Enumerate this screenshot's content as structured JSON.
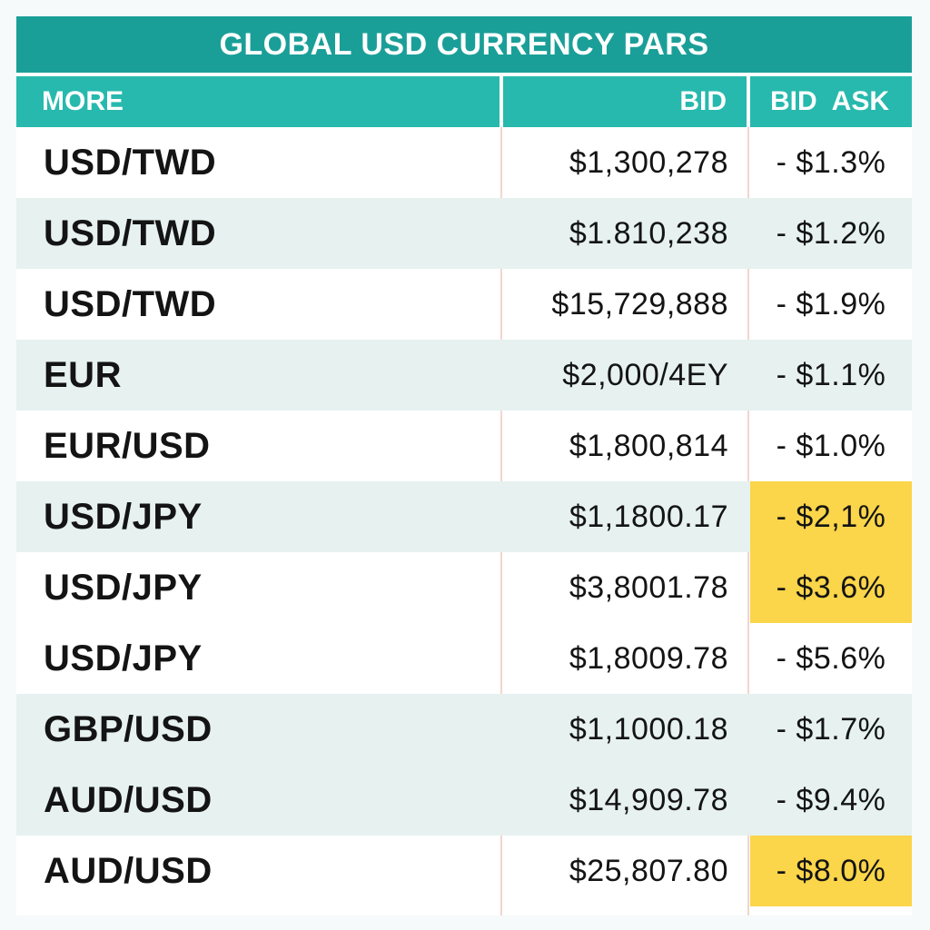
{
  "title": "GLOBAL USD CURRENCY PARS",
  "headers": {
    "col1": "MORE",
    "col2": "BID",
    "col3a": "BID",
    "col3b": "ASK"
  },
  "colors": {
    "title_bg": "#1a9f98",
    "header_bg": "#27b9ad",
    "row_shade": "#e6f1f0",
    "highlight": "#fbd54a"
  },
  "rows": [
    {
      "pair": "USD/TWD",
      "bid": "$1,300,278",
      "ask": "- $1.3%",
      "highlight": false,
      "shaded": false
    },
    {
      "pair": "USD/TWD",
      "bid": "$1.810,238",
      "ask": "- $1.2%",
      "highlight": false,
      "shaded": true
    },
    {
      "pair": "USD/TWD",
      "bid": "$15,729,888",
      "ask": "- $1.9%",
      "highlight": false,
      "shaded": false
    },
    {
      "pair": "EUR",
      "bid": "$2,000/4EY",
      "ask": "- $1.1%",
      "highlight": false,
      "shaded": true
    },
    {
      "pair": "EUR/USD",
      "bid": "$1,800,814",
      "ask": "- $1.0%",
      "highlight": false,
      "shaded": false
    },
    {
      "pair": "USD/JPY",
      "bid": "$1,1800.17",
      "ask": "- $2,1%",
      "highlight": true,
      "shaded": true
    },
    {
      "pair": "USD/JPY",
      "bid": "$3,8001.78",
      "ask": "- $3.6%",
      "highlight": true,
      "shaded": false
    },
    {
      "pair": "USD/JPY",
      "bid": "$1,8009.78",
      "ask": "- $5.6%",
      "highlight": false,
      "shaded": false
    },
    {
      "pair": "GBP/USD",
      "bid": "$1,1000.18",
      "ask": "- $1.7%",
      "highlight": false,
      "shaded": true
    },
    {
      "pair": "AUD/USD",
      "bid": "$14,909.78",
      "ask": "- $9.4%",
      "highlight": false,
      "shaded": true
    },
    {
      "pair": "AUD/USD",
      "bid": "$25,807.80",
      "ask": "- $8.0%",
      "highlight": true,
      "shaded": false
    }
  ]
}
